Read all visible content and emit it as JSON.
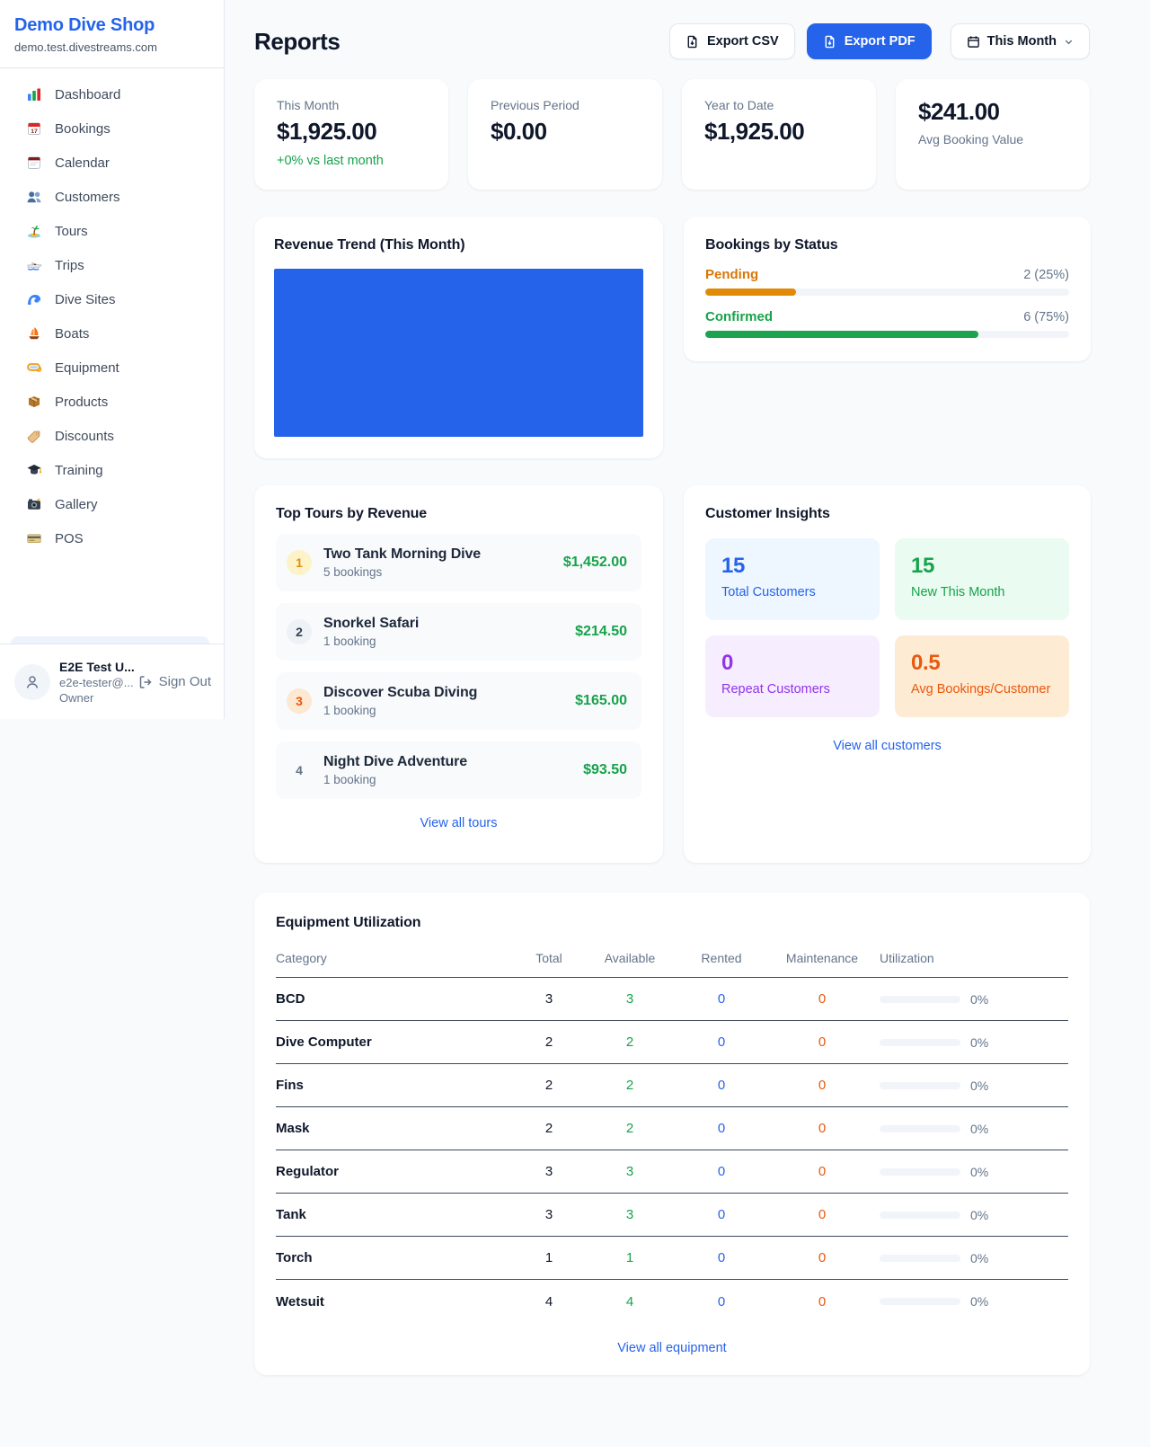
{
  "colors": {
    "accent_blue": "#2563eb",
    "green": "#16a34a",
    "amber": "#d97706",
    "deep_orange": "#ea580c",
    "purple": "#9333ea",
    "page_bg": "#f8fafc"
  },
  "brand": {
    "name": "Demo Dive Shop",
    "domain": "demo.test.divestreams.com"
  },
  "sidebar": {
    "items": [
      {
        "label": "Dashboard"
      },
      {
        "label": "Bookings"
      },
      {
        "label": "Calendar"
      },
      {
        "label": "Customers"
      },
      {
        "label": "Tours"
      },
      {
        "label": "Trips"
      },
      {
        "label": "Dive Sites"
      },
      {
        "label": "Boats"
      },
      {
        "label": "Equipment"
      },
      {
        "label": "Products"
      },
      {
        "label": "Discounts"
      },
      {
        "label": "Training"
      },
      {
        "label": "Gallery"
      },
      {
        "label": "POS"
      }
    ]
  },
  "user": {
    "name": "E2E Test U...",
    "email": "e2e-tester@...",
    "role": "Owner",
    "sign_out": "Sign Out"
  },
  "header": {
    "title": "Reports",
    "export_csv": "Export CSV",
    "export_pdf": "Export PDF",
    "period": "This Month"
  },
  "stats": {
    "cards": [
      {
        "label": "This Month",
        "value": "$1,925.00",
        "delta": "+0% vs last month"
      },
      {
        "label": "Previous Period",
        "value": "$0.00"
      },
      {
        "label": "Year to Date",
        "value": "$1,925.00"
      },
      {
        "label": "Avg Booking Value",
        "value": "$241.00"
      }
    ]
  },
  "revenue_card": {
    "title": "Revenue Trend (This Month)"
  },
  "status_card": {
    "title": "Bookings by Status",
    "rows": [
      {
        "label": "Pending",
        "value_text": "2 (25%)",
        "percent": 25
      },
      {
        "label": "Confirmed",
        "value_text": "6 (75%)",
        "percent": 75
      }
    ]
  },
  "tours_card": {
    "title": "Top Tours by Revenue",
    "items": [
      {
        "rank": "1",
        "name": "Two Tank Morning Dive",
        "bookings": "5 bookings",
        "revenue": "$1,452.00"
      },
      {
        "rank": "2",
        "name": "Snorkel Safari",
        "bookings": "1 booking",
        "revenue": "$214.50"
      },
      {
        "rank": "3",
        "name": "Discover Scuba Diving",
        "bookings": "1 booking",
        "revenue": "$165.00"
      },
      {
        "rank": "4",
        "name": "Night Dive Adventure",
        "bookings": "1 booking",
        "revenue": "$93.50"
      }
    ],
    "view_all": "View all tours"
  },
  "insights_card": {
    "title": "Customer Insights",
    "tiles": [
      {
        "value": "15",
        "label": "Total Customers"
      },
      {
        "value": "15",
        "label": "New This Month"
      },
      {
        "value": "0",
        "label": "Repeat Customers"
      },
      {
        "value": "0.5",
        "label": "Avg Bookings/Customer"
      }
    ],
    "view_all": "View all customers"
  },
  "equipment_card": {
    "title": "Equipment Utilization",
    "columns": {
      "category": "Category",
      "total": "Total",
      "available": "Available",
      "rented": "Rented",
      "maintenance": "Maintenance",
      "utilization": "Utilization"
    },
    "rows": [
      {
        "category": "BCD",
        "total": "3",
        "available": "3",
        "rented": "0",
        "maintenance": "0",
        "utilization_text": "0%",
        "utilization_percent": 0
      },
      {
        "category": "Dive Computer",
        "total": "2",
        "available": "2",
        "rented": "0",
        "maintenance": "0",
        "utilization_text": "0%",
        "utilization_percent": 0
      },
      {
        "category": "Fins",
        "total": "2",
        "available": "2",
        "rented": "0",
        "maintenance": "0",
        "utilization_text": "0%",
        "utilization_percent": 0
      },
      {
        "category": "Mask",
        "total": "2",
        "available": "2",
        "rented": "0",
        "maintenance": "0",
        "utilization_text": "0%",
        "utilization_percent": 0
      },
      {
        "category": "Regulator",
        "total": "3",
        "available": "3",
        "rented": "0",
        "maintenance": "0",
        "utilization_text": "0%",
        "utilization_percent": 0
      },
      {
        "category": "Tank",
        "total": "3",
        "available": "3",
        "rented": "0",
        "maintenance": "0",
        "utilization_text": "0%",
        "utilization_percent": 0
      },
      {
        "category": "Torch",
        "total": "1",
        "available": "1",
        "rented": "0",
        "maintenance": "0",
        "utilization_text": "0%",
        "utilization_percent": 0
      },
      {
        "category": "Wetsuit",
        "total": "4",
        "available": "4",
        "rented": "0",
        "maintenance": "0",
        "utilization_text": "0%",
        "utilization_percent": 0
      }
    ],
    "view_all": "View all equipment"
  },
  "chart_data": [
    {
      "id": "revenue-trend",
      "type": "bar",
      "title": "Revenue Trend (This Month)",
      "categories": [
        "This Month"
      ],
      "values": [
        1925
      ],
      "bar_color": "#2563eb",
      "note": "single bar fills the entire plot area; no axes or gridlines shown"
    },
    {
      "id": "bookings-by-status",
      "type": "bar",
      "orientation": "horizontal",
      "title": "Bookings by Status",
      "categories": [
        "Pending",
        "Confirmed"
      ],
      "values": [
        2,
        6
      ],
      "percentages": [
        25,
        75
      ],
      "data_labels": [
        "2 (25%)",
        "6 (75%)"
      ],
      "colors": [
        "#d97706",
        "#16a34a"
      ]
    }
  ]
}
